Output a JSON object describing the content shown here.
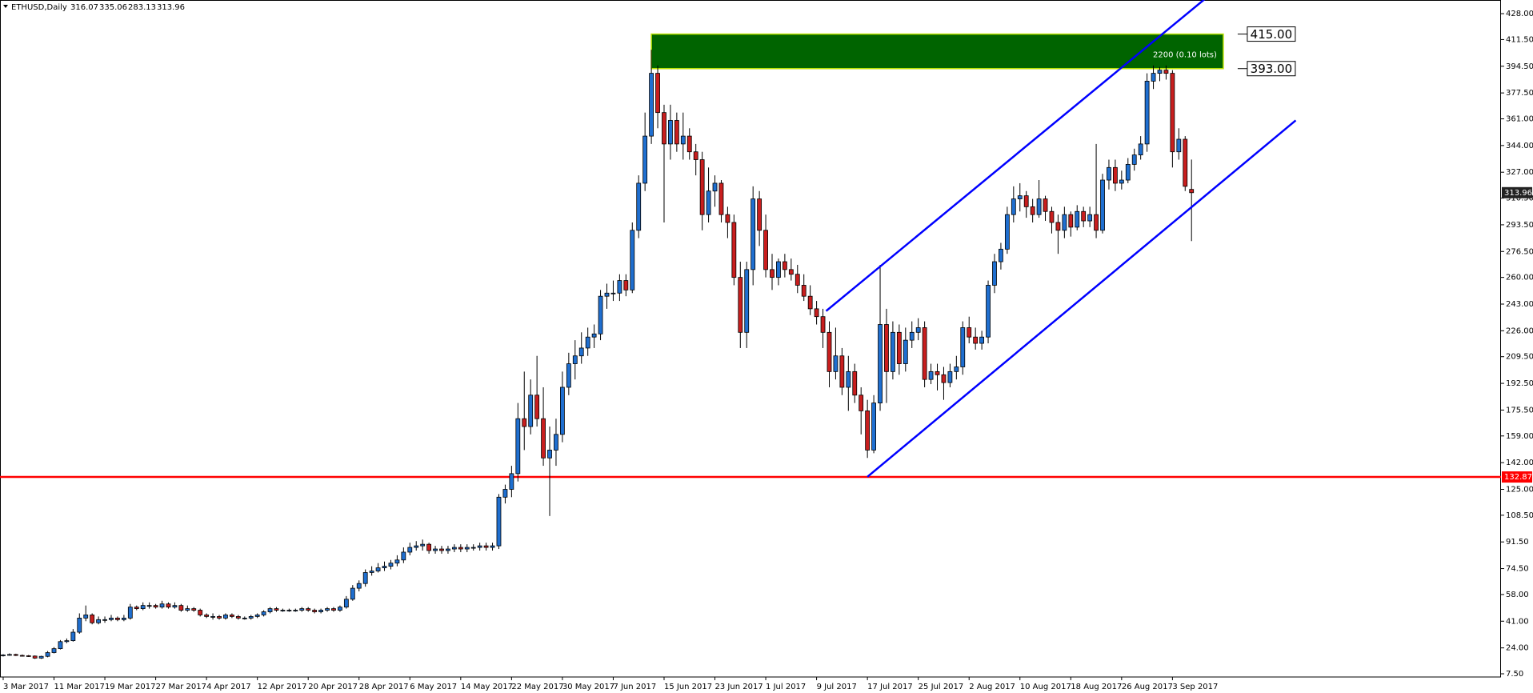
{
  "chart_data": {
    "type": "candlestick",
    "title": "ETHUSD,Daily",
    "xlim": [
      -0.5,
      235.7
    ],
    "ylim": [
      5.46,
      436.7
    ],
    "bull_color": "#1f6fd0",
    "bear_color": "#c81e1e",
    "xticks": [
      {
        "value": 0,
        "label": "3 Mar 2017"
      },
      {
        "value": 8,
        "label": "11 Mar 2017"
      },
      {
        "value": 16,
        "label": "19 Mar 2017"
      },
      {
        "value": 24,
        "label": "27 Mar 2017"
      },
      {
        "value": 32,
        "label": "4 Apr 2017"
      },
      {
        "value": 40,
        "label": "12 Apr 2017"
      },
      {
        "value": 48,
        "label": "20 Apr 2017"
      },
      {
        "value": 56,
        "label": "28 Apr 2017"
      },
      {
        "value": 64,
        "label": "6 May 2017"
      },
      {
        "value": 72,
        "label": "14 May 2017"
      },
      {
        "value": 80,
        "label": "22 May 2017"
      },
      {
        "value": 88,
        "label": "30 May 2017"
      },
      {
        "value": 96,
        "label": "7 Jun 2017"
      },
      {
        "value": 104,
        "label": "15 Jun 2017"
      },
      {
        "value": 112,
        "label": "23 Jun 2017"
      },
      {
        "value": 120,
        "label": "1 Jul 2017"
      },
      {
        "value": 128,
        "label": "9 Jul 2017"
      },
      {
        "value": 136,
        "label": "17 Jul 2017"
      },
      {
        "value": 144,
        "label": "25 Jul 2017"
      },
      {
        "value": 152,
        "label": "2 Aug 2017"
      },
      {
        "value": 160,
        "label": "10 Aug 2017"
      },
      {
        "value": 168,
        "label": "18 Aug 2017"
      },
      {
        "value": 176,
        "label": "26 Aug 2017"
      },
      {
        "value": 184,
        "label": "3 Sep 2017"
      }
    ],
    "yticks": [
      {
        "value": 428,
        "label": "428.00"
      },
      {
        "value": 411.5,
        "label": "411.50"
      },
      {
        "value": 394.5,
        "label": "394.50"
      },
      {
        "value": 377.5,
        "label": "377.50"
      },
      {
        "value": 361,
        "label": "361.00"
      },
      {
        "value": 344,
        "label": "344.00"
      },
      {
        "value": 327,
        "label": "327.00"
      },
      {
        "value": 310.5,
        "label": "310.50"
      },
      {
        "value": 293.5,
        "label": "293.50"
      },
      {
        "value": 276.5,
        "label": "276.50"
      },
      {
        "value": 260,
        "label": "260.00"
      },
      {
        "value": 243,
        "label": "243.00"
      },
      {
        "value": 226,
        "label": "226.00"
      },
      {
        "value": 209.5,
        "label": "209.50"
      },
      {
        "value": 192.5,
        "label": "192.50"
      },
      {
        "value": 175.5,
        "label": "175.50"
      },
      {
        "value": 159,
        "label": "159.00"
      },
      {
        "value": 142,
        "label": "142.00"
      },
      {
        "value": 125,
        "label": "125.00"
      },
      {
        "value": 108.5,
        "label": "108.50"
      },
      {
        "value": 91.5,
        "label": "91.50"
      },
      {
        "value": 74.5,
        "label": "74.50"
      },
      {
        "value": 58,
        "label": "58.00"
      },
      {
        "value": 41,
        "label": "41.00"
      },
      {
        "value": 24,
        "label": "24.00"
      },
      {
        "value": 7.5,
        "label": "7.50"
      }
    ],
    "open": [
      19,
      19.5,
      19.8,
      19.2,
      19,
      18.8,
      17.5,
      18.6,
      21,
      23.5,
      28,
      28.6,
      34,
      43,
      45,
      40,
      42,
      42,
      43,
      42,
      43,
      50,
      49,
      51,
      51,
      50,
      52,
      50,
      51,
      48,
      49,
      48,
      45,
      44,
      44,
      43,
      45,
      44,
      43,
      43,
      44,
      45,
      47,
      49,
      48,
      48,
      48,
      48,
      49,
      48,
      47,
      48,
      49,
      48,
      50,
      55,
      62,
      65,
      72,
      73,
      75,
      76,
      78,
      80,
      85,
      88,
      89,
      90,
      86,
      87,
      86,
      87,
      88,
      87,
      88,
      88,
      89,
      88,
      89,
      120,
      125,
      135,
      170,
      165,
      185,
      170,
      145,
      150,
      160,
      190,
      205,
      210,
      215,
      222,
      224,
      248,
      250,
      250,
      258,
      252,
      290,
      320,
      350,
      390,
      365,
      345,
      360,
      345,
      350,
      340,
      335,
      300,
      315,
      320,
      300,
      295,
      260,
      225,
      265,
      310,
      290,
      265,
      260,
      270,
      265,
      262,
      255,
      248,
      240,
      235,
      225,
      200,
      210,
      190,
      200,
      185,
      175,
      150,
      180,
      230,
      200,
      225,
      205,
      220,
      225,
      228,
      195,
      200,
      198,
      193,
      200,
      203,
      228,
      222,
      218,
      222,
      255,
      270,
      278,
      300,
      310,
      312,
      305,
      300,
      310,
      302,
      295,
      290,
      300,
      292,
      302,
      296,
      300,
      290,
      322,
      330,
      320,
      322,
      332,
      338,
      345,
      385,
      390,
      392,
      390,
      340,
      348,
      316.07
    ],
    "high": [
      20,
      20.5,
      20.3,
      19.8,
      19.5,
      19.2,
      19,
      22,
      24.5,
      29,
      30,
      36,
      46,
      51,
      46,
      44,
      44,
      45,
      44,
      45,
      52,
      51,
      53,
      53,
      52,
      54,
      53,
      53,
      52,
      51,
      50,
      49,
      46,
      46,
      45,
      46,
      46,
      45,
      44,
      45,
      46,
      48,
      50,
      50,
      49,
      49,
      49,
      50,
      50,
      49,
      49,
      50,
      50,
      51,
      57,
      64,
      67,
      74,
      76,
      78,
      79,
      80,
      83,
      88,
      91,
      92,
      93,
      91,
      89,
      89,
      89,
      90,
      90,
      90,
      90,
      91,
      91,
      91,
      122,
      128,
      140,
      180,
      200,
      195,
      210,
      190,
      165,
      170,
      200,
      212,
      220,
      225,
      228,
      230,
      252,
      256,
      258,
      262,
      262,
      295,
      325,
      365,
      405,
      395,
      370,
      370,
      365,
      365,
      355,
      345,
      340,
      330,
      325,
      322,
      305,
      300,
      270,
      270,
      318,
      315,
      300,
      275,
      272,
      275,
      272,
      268,
      262,
      255,
      245,
      240,
      232,
      228,
      215,
      210,
      205,
      190,
      182,
      185,
      268,
      240,
      232,
      230,
      228,
      232,
      234,
      232,
      205,
      205,
      203,
      205,
      210,
      232,
      235,
      228,
      226,
      258,
      275,
      282,
      305,
      318,
      320,
      315,
      310,
      322,
      312,
      305,
      300,
      305,
      302,
      306,
      305,
      305,
      345,
      326,
      335,
      335,
      328,
      336,
      342,
      350,
      390,
      395,
      394,
      395,
      392,
      355,
      350,
      335.06
    ],
    "low": [
      18.5,
      19,
      18.8,
      18.5,
      18.2,
      17,
      17,
      18,
      20.5,
      23,
      27,
      28,
      33,
      41,
      39,
      39,
      40,
      41,
      41,
      41,
      42,
      48,
      48,
      49,
      49,
      49,
      49,
      49,
      47,
      47,
      47,
      44,
      43,
      42,
      42,
      42,
      43,
      42,
      42,
      42,
      43,
      44,
      46,
      47,
      47,
      47,
      47,
      47,
      47,
      46,
      46,
      47,
      47,
      47,
      49,
      54,
      60,
      63,
      70,
      72,
      73,
      74,
      76,
      78,
      83,
      86,
      86,
      84,
      84,
      84,
      84,
      85,
      85,
      85,
      86,
      86,
      86,
      86,
      87,
      116,
      120,
      130,
      150,
      160,
      165,
      140,
      108,
      140,
      155,
      185,
      195,
      205,
      210,
      215,
      220,
      240,
      245,
      245,
      248,
      250,
      285,
      315,
      345,
      355,
      295,
      335,
      340,
      335,
      335,
      325,
      290,
      295,
      305,
      295,
      285,
      255,
      215,
      215,
      255,
      280,
      260,
      252,
      255,
      260,
      258,
      250,
      245,
      236,
      230,
      215,
      190,
      195,
      185,
      175,
      180,
      160,
      145,
      148,
      175,
      180,
      195,
      198,
      200,
      215,
      220,
      190,
      192,
      188,
      182,
      190,
      195,
      198,
      218,
      214,
      214,
      218,
      250,
      265,
      275,
      295,
      302,
      298,
      295,
      298,
      296,
      288,
      275,
      285,
      286,
      290,
      292,
      292,
      285,
      288,
      316,
      315,
      316,
      320,
      328,
      335,
      340,
      380,
      385,
      386,
      330,
      335,
      315,
      283.13
    ],
    "close": [
      19.5,
      19.8,
      19.2,
      19,
      18.8,
      17.5,
      18.6,
      21,
      23.5,
      28,
      28.6,
      34,
      43,
      45,
      40,
      42,
      42,
      43,
      42,
      43,
      50,
      49,
      51,
      51,
      50,
      52,
      50,
      51,
      48,
      49,
      48,
      45,
      44,
      44,
      43,
      45,
      44,
      43,
      43,
      44,
      45,
      47,
      49,
      48,
      48,
      48,
      48,
      49,
      48,
      47,
      48,
      49,
      48,
      50,
      55,
      62,
      65,
      72,
      73,
      75,
      76,
      78,
      80,
      85,
      88,
      89,
      90,
      86,
      87,
      86,
      87,
      88,
      87,
      88,
      88,
      89,
      88,
      89,
      120,
      125,
      135,
      170,
      165,
      185,
      170,
      145,
      150,
      160,
      190,
      205,
      210,
      215,
      222,
      224,
      248,
      250,
      250,
      258,
      252,
      290,
      320,
      350,
      390,
      365,
      345,
      360,
      345,
      350,
      340,
      335,
      300,
      315,
      320,
      300,
      295,
      260,
      225,
      265,
      310,
      290,
      265,
      260,
      270,
      265,
      262,
      255,
      248,
      240,
      235,
      225,
      200,
      210,
      190,
      200,
      185,
      175,
      150,
      180,
      230,
      200,
      225,
      205,
      220,
      225,
      228,
      195,
      200,
      198,
      193,
      200,
      203,
      228,
      222,
      218,
      222,
      255,
      270,
      278,
      300,
      310,
      312,
      305,
      300,
      310,
      302,
      295,
      290,
      300,
      292,
      302,
      296,
      300,
      290,
      322,
      330,
      320,
      322,
      332,
      338,
      345,
      385,
      390,
      392,
      390,
      340,
      348,
      318,
      313.96
    ],
    "levels": [
      {
        "value": 415,
        "label": "415.00"
      },
      {
        "value": 393,
        "label": "393.00"
      }
    ],
    "zone_x": [
      102,
      192
    ],
    "zone_label": "2200 (0.10 lots)",
    "zone_color": "#006400",
    "support": {
      "value": 132.87,
      "color": "#ff0000"
    },
    "channel_color": "#0000ff",
    "channel": [
      {
        "x": [
          129.5,
          190.5
        ],
        "y": [
          238.6,
          442
        ]
      },
      {
        "x": [
          136,
          203.4
        ],
        "y": [
          133,
          360
        ]
      }
    ]
  }
}
